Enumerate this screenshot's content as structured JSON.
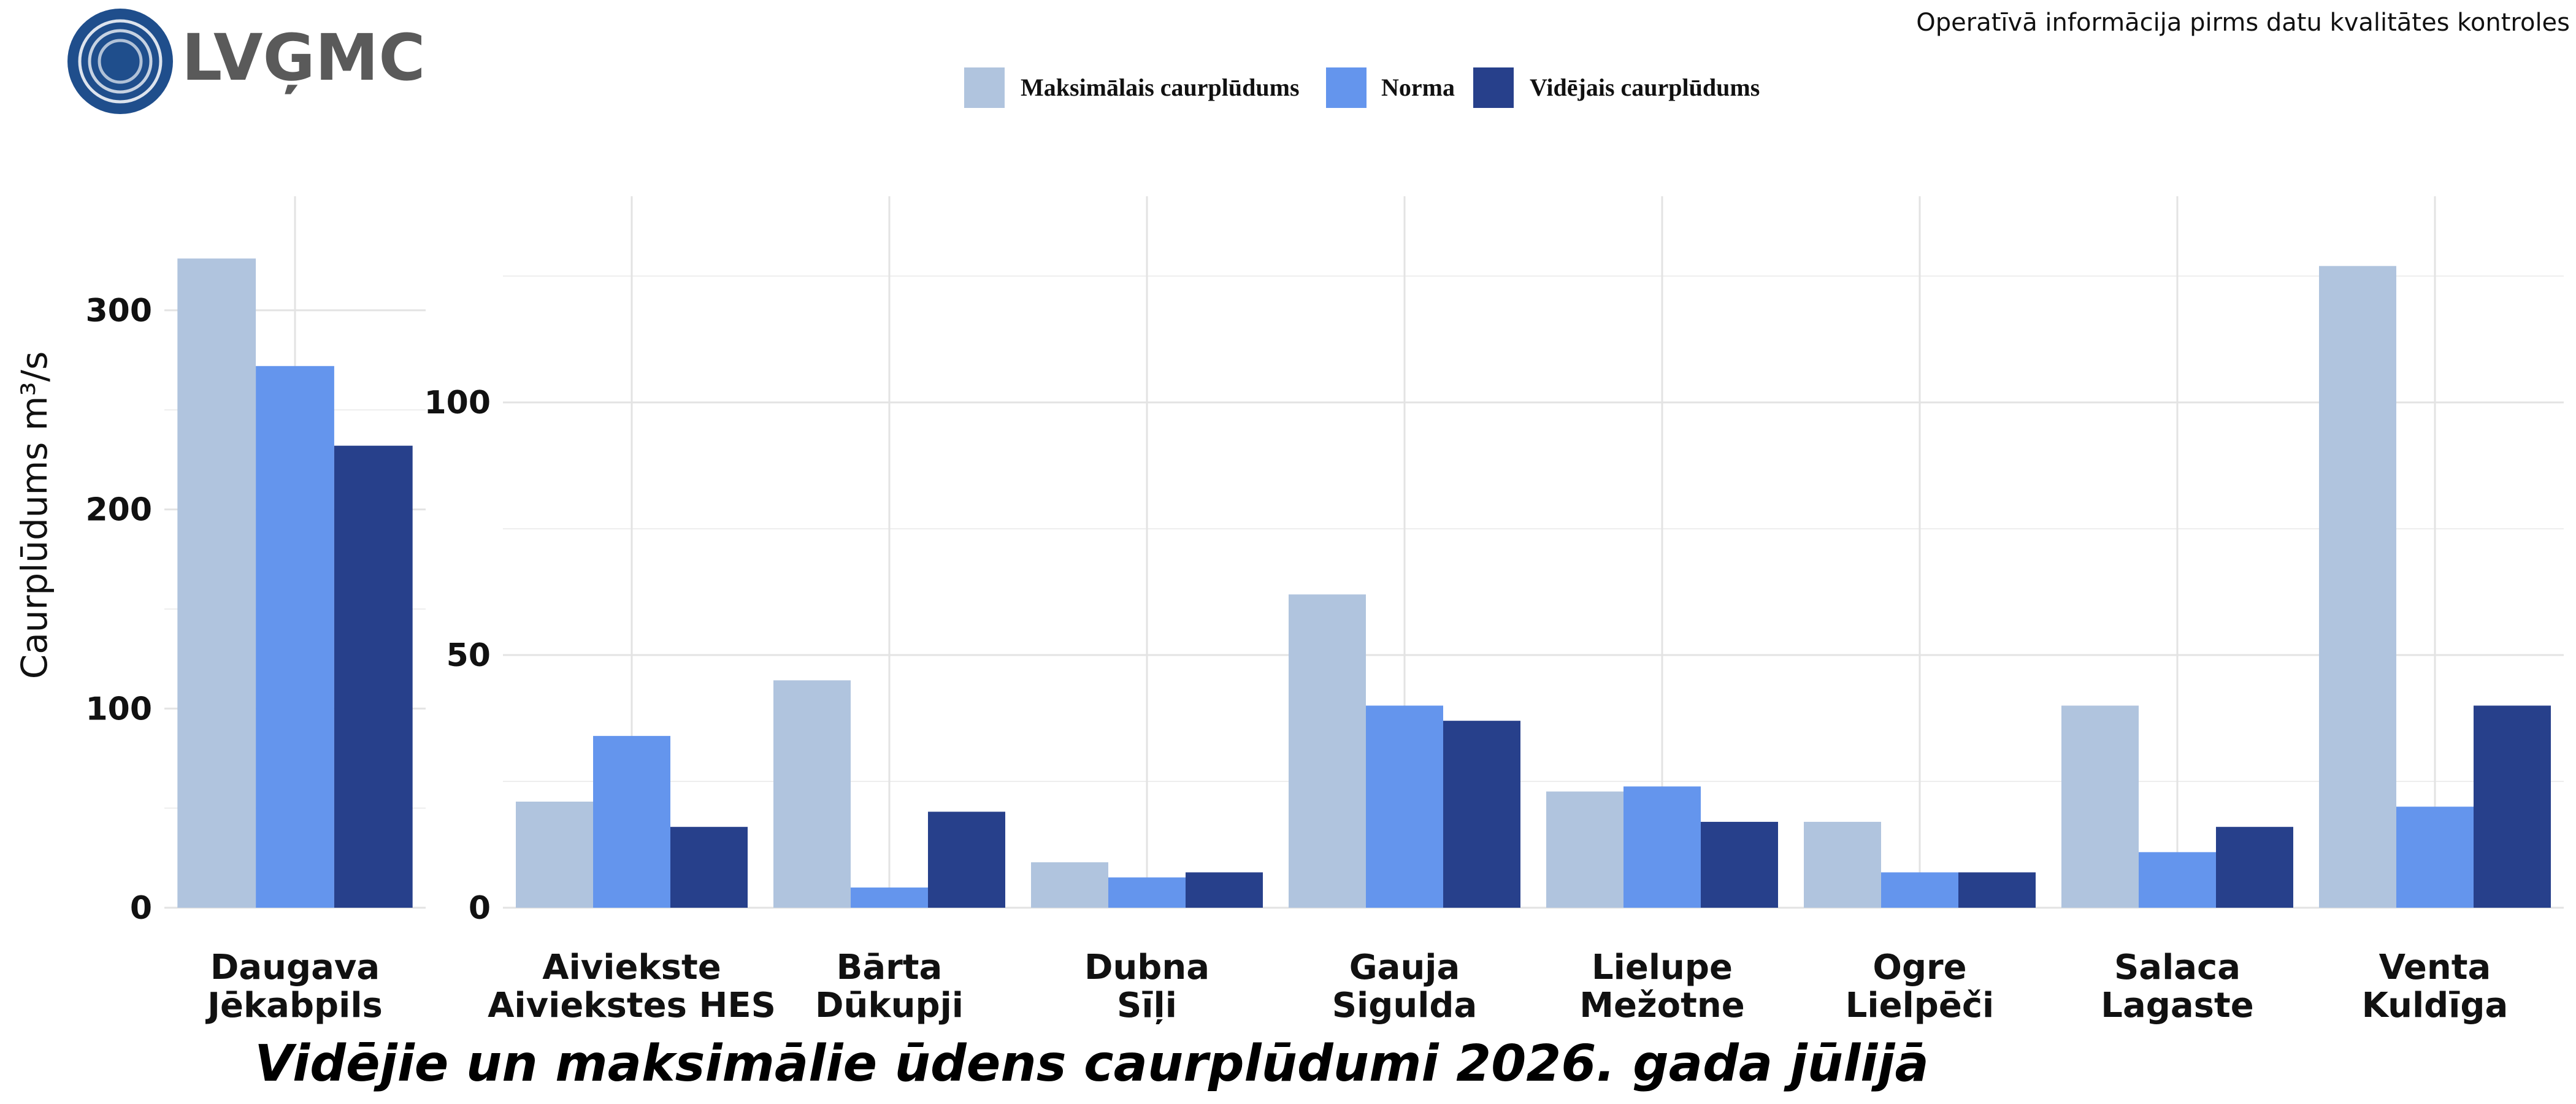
{
  "header": {
    "logo_text": "LVĢMC",
    "notice": "Operatīvā informācija pirms datu kvalitātes kontroles"
  },
  "legend": [
    {
      "label": "Maksimālais caurplūdums",
      "color": "#b0c4de"
    },
    {
      "label": "Norma",
      "color": "#6495ed"
    },
    {
      "label": "Vidējais caurplūdums",
      "color": "#27408b"
    }
  ],
  "chart_data": [
    {
      "type": "bar",
      "title": "Vidējie un maksimālie ūdens caurplūdumi 2026. gada jūlijā",
      "ylabel": "Caurplūdums   m³/s",
      "ylim": [
        0,
        340
      ],
      "yticks": [
        0,
        100,
        200,
        300
      ],
      "categories": [
        [
          "Daugava",
          "Jēkabpils"
        ]
      ],
      "series": [
        {
          "name": "Maksimālais caurplūdums",
          "values": [
            326
          ]
        },
        {
          "name": "Norma",
          "values": [
            272
          ]
        },
        {
          "name": "Vidējais caurplūdums",
          "values": [
            232
          ]
        }
      ],
      "grid": true
    },
    {
      "type": "bar",
      "ylim": [
        0,
        134
      ],
      "yticks": [
        0,
        50,
        100
      ],
      "categories": [
        [
          "Aiviekste",
          "Aiviekstes HES"
        ],
        [
          "Bārta",
          "Dūkupji"
        ],
        [
          "Dubna",
          "Sīļi"
        ],
        [
          "Gauja",
          "Sigulda"
        ],
        [
          "Lielupe",
          "Mežotne"
        ],
        [
          "Ogre",
          "Lielpēči"
        ],
        [
          "Salaca",
          "Lagaste"
        ],
        [
          "Venta",
          "Kuldīga"
        ]
      ],
      "series": [
        {
          "name": "Maksimālais caurplūdums",
          "values": [
            21,
            45,
            9,
            62,
            23,
            17,
            40,
            127
          ]
        },
        {
          "name": "Norma",
          "values": [
            34,
            4,
            6,
            40,
            24,
            7,
            11,
            20
          ]
        },
        {
          "name": "Vidējais caurplūdums",
          "values": [
            16,
            19,
            7,
            37,
            17,
            7,
            16,
            40
          ]
        }
      ],
      "grid": true
    }
  ]
}
